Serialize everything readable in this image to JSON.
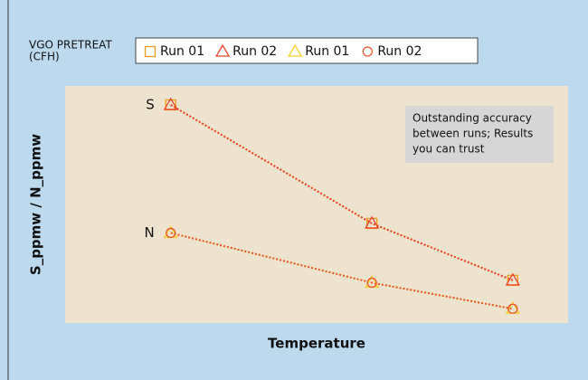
{
  "chart_data": {
    "type": "line",
    "legend_title": [
      "VGO PRETREAT",
      "(CFH)"
    ],
    "ylabel": "S_ppmw / N_ppmw",
    "xlabel": "Temperature",
    "annotation": [
      "Outstanding accuracy",
      "between runs; Results",
      "you can trust"
    ],
    "point_labels": [
      "S",
      "N"
    ],
    "xlim": [
      0,
      100
    ],
    "ylim": [
      0,
      100
    ],
    "x": [
      21,
      61,
      89
    ],
    "series": [
      {
        "name": "Run 01",
        "color": "#f29b1d",
        "marker": "square",
        "values": [
          92,
          42,
          18
        ]
      },
      {
        "name": "Run 02",
        "color": "#e8452c",
        "marker": "triangle",
        "values": [
          92,
          42,
          18
        ]
      },
      {
        "name": "Run 01",
        "color": "#f5cd2e",
        "marker": "triangle",
        "values": [
          38,
          17,
          6
        ]
      },
      {
        "name": "Run 02",
        "color": "#e8562c",
        "marker": "circle",
        "values": [
          38,
          17,
          6
        ]
      }
    ]
  }
}
